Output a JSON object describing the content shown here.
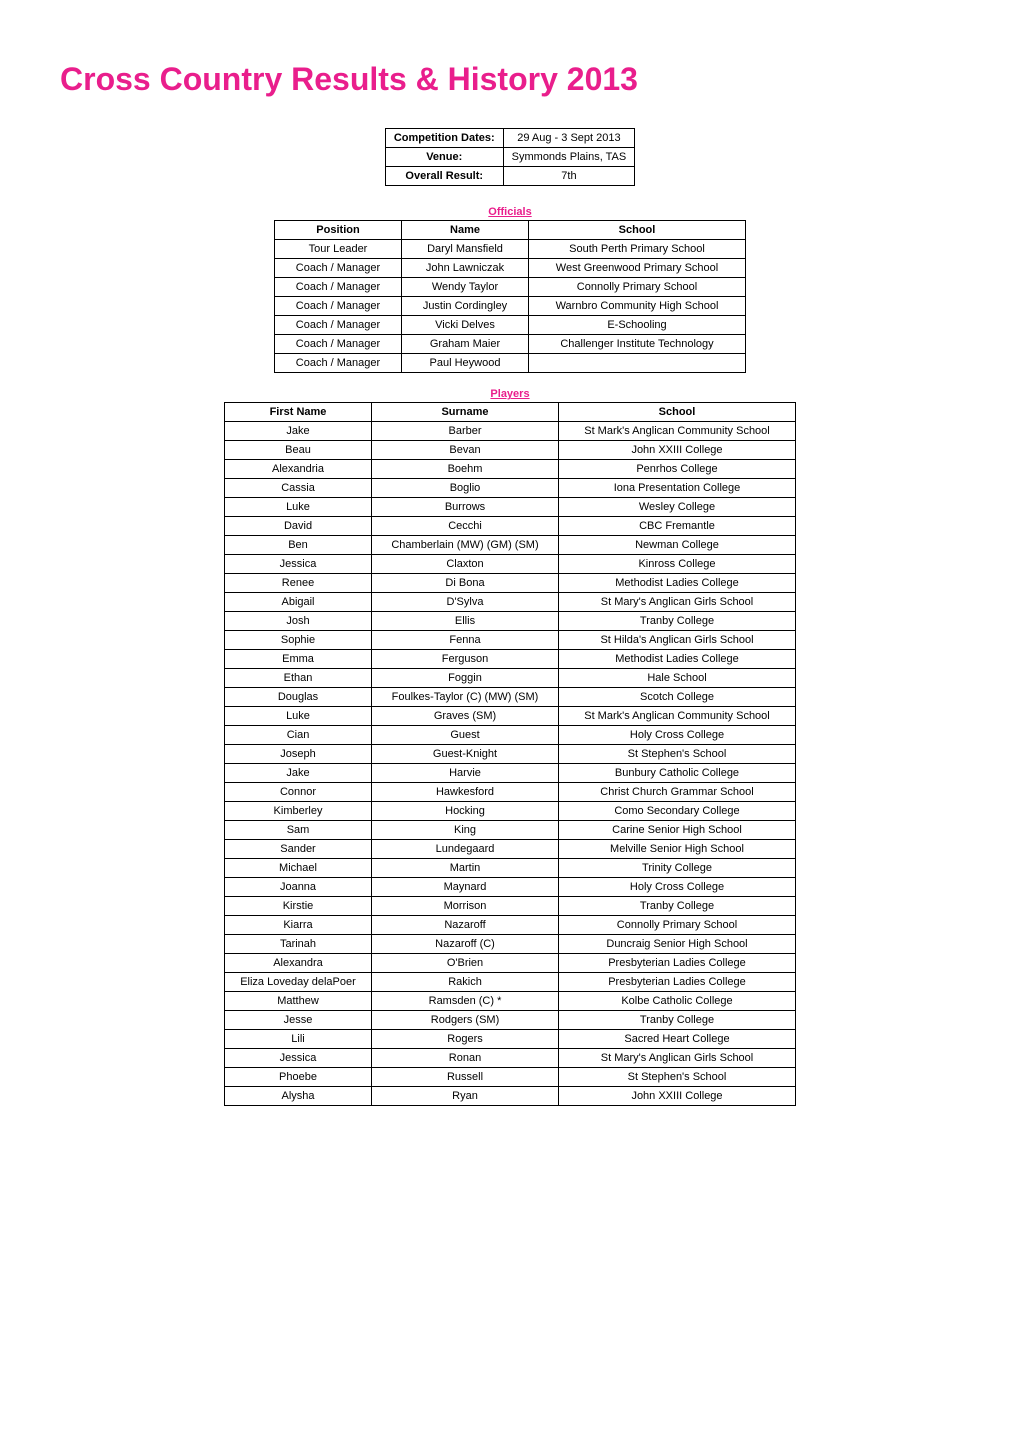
{
  "page": {
    "title": "Cross Country Results & History 2013",
    "title_color": "#e91e8c",
    "background_color": "#ffffff"
  },
  "info": {
    "rows": [
      {
        "label": "Competition Dates:",
        "value": "29 Aug - 3 Sept 2013"
      },
      {
        "label": "Venue:",
        "value": "Symmonds Plains, TAS"
      },
      {
        "label": "Overall Result:",
        "value": "7th"
      }
    ]
  },
  "officials": {
    "section_label": "Officials",
    "columns": [
      "Position",
      "Name",
      "School"
    ],
    "rows": [
      [
        "Tour Leader",
        "Daryl Mansfield",
        "South Perth Primary School"
      ],
      [
        "Coach / Manager",
        "John Lawniczak",
        "West Greenwood Primary School"
      ],
      [
        "Coach / Manager",
        "Wendy Taylor",
        "Connolly Primary School"
      ],
      [
        "Coach / Manager",
        "Justin Cordingley",
        "Warnbro Community High School"
      ],
      [
        "Coach / Manager",
        "Vicki Delves",
        "E-Schooling"
      ],
      [
        "Coach / Manager",
        "Graham Maier",
        "Challenger Institute Technology"
      ],
      [
        "Coach / Manager",
        "Paul Heywood",
        ""
      ]
    ]
  },
  "players": {
    "section_label": "Players",
    "columns": [
      "First Name",
      "Surname",
      "School"
    ],
    "rows": [
      [
        "Jake",
        "Barber",
        "St Mark's Anglican Community School"
      ],
      [
        "Beau",
        "Bevan",
        "John XXIII College"
      ],
      [
        "Alexandria",
        "Boehm",
        "Penrhos College"
      ],
      [
        "Cassia",
        "Boglio",
        "Iona Presentation College"
      ],
      [
        "Luke",
        "Burrows",
        "Wesley College"
      ],
      [
        "David",
        "Cecchi",
        "CBC Fremantle"
      ],
      [
        "Ben",
        "Chamberlain (MW) (GM) (SM)",
        "Newman College"
      ],
      [
        "Jessica",
        "Claxton",
        "Kinross College"
      ],
      [
        "Renee",
        "Di Bona",
        "Methodist Ladies College"
      ],
      [
        "Abigail",
        "D'Sylva",
        "St Mary's Anglican Girls School"
      ],
      [
        "Josh",
        "Ellis",
        "Tranby College"
      ],
      [
        "Sophie",
        "Fenna",
        "St Hilda's Anglican Girls School"
      ],
      [
        "Emma",
        "Ferguson",
        "Methodist Ladies College"
      ],
      [
        "Ethan",
        "Foggin",
        "Hale School"
      ],
      [
        "Douglas",
        "Foulkes-Taylor (C) (MW) (SM)",
        "Scotch College"
      ],
      [
        "Luke",
        "Graves (SM)",
        "St Mark's Anglican Community School"
      ],
      [
        "Cian",
        "Guest",
        "Holy Cross College"
      ],
      [
        "Joseph",
        "Guest-Knight",
        "St Stephen's School"
      ],
      [
        "Jake",
        "Harvie",
        "Bunbury Catholic College"
      ],
      [
        "Connor",
        "Hawkesford",
        "Christ Church Grammar School"
      ],
      [
        "Kimberley",
        "Hocking",
        "Como Secondary College"
      ],
      [
        "Sam",
        "King",
        "Carine Senior High School"
      ],
      [
        "Sander",
        "Lundegaard",
        "Melville Senior High School"
      ],
      [
        "Michael",
        "Martin",
        "Trinity College"
      ],
      [
        "Joanna",
        "Maynard",
        "Holy Cross College"
      ],
      [
        "Kirstie",
        "Morrison",
        "Tranby College"
      ],
      [
        "Kiarra",
        "Nazaroff",
        "Connolly Primary School"
      ],
      [
        "Tarinah",
        "Nazaroff (C)",
        "Duncraig Senior High School"
      ],
      [
        "Alexandra",
        "O'Brien",
        "Presbyterian Ladies College"
      ],
      [
        "Eliza Loveday delaPoer",
        "Rakich",
        "Presbyterian Ladies College"
      ],
      [
        "Matthew",
        "Ramsden (C) *",
        "Kolbe Catholic College"
      ],
      [
        "Jesse",
        "Rodgers (SM)",
        "Tranby College"
      ],
      [
        "Lili",
        "Rogers",
        "Sacred Heart College"
      ],
      [
        "Jessica",
        "Ronan",
        "St Mary's Anglican Girls School"
      ],
      [
        "Phoebe",
        "Russell",
        "St Stephen's School"
      ],
      [
        "Alysha",
        "Ryan",
        "John XXIII College"
      ]
    ]
  }
}
